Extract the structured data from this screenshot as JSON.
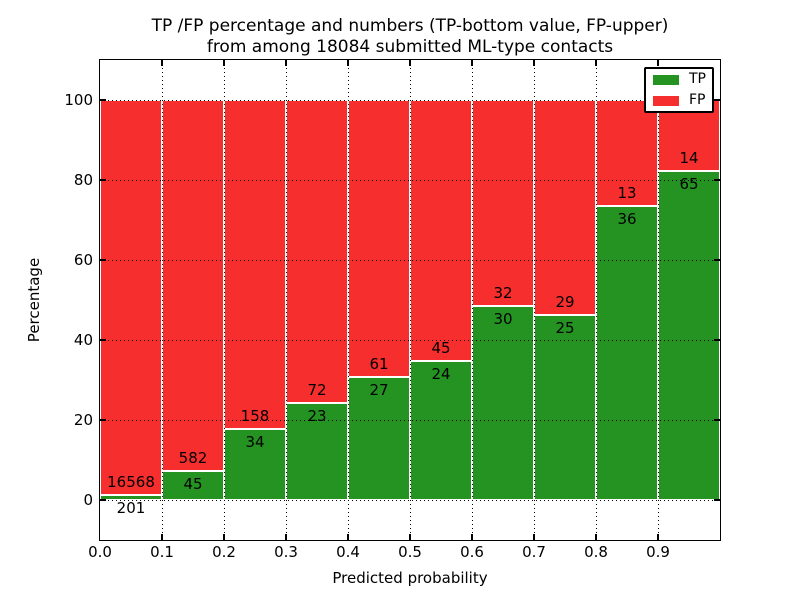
{
  "title": {
    "line1": "TP /FP percentage and numbers (TP-bottom value, FP-upper)",
    "line2": "from among 18084 submitted ML-type contacts"
  },
  "axes": {
    "xlabel": "Predicted probability",
    "ylabel": "Percentage"
  },
  "legend": {
    "items": [
      {
        "label": "TP",
        "color": "#249322"
      },
      {
        "label": "FP",
        "color": "#f62e2e"
      }
    ]
  },
  "colors": {
    "tp": "#249322",
    "fp": "#f62e2e",
    "grid": "#000000",
    "axis": "#000000",
    "background": "#ffffff",
    "bar_edge": "#ffffff",
    "text": "#000000"
  },
  "chart_data": {
    "type": "bar",
    "subtype": "stacked-100-percent",
    "title": "TP /FP percentage and numbers (TP-bottom value, FP-upper) from among 18084 submitted ML-type contacts",
    "xlabel": "Predicted probability",
    "ylabel": "Percentage",
    "total_submitted": 18084,
    "xlim": [
      0.0,
      1.0
    ],
    "ylim": [
      -10,
      110
    ],
    "xticks": [
      "0.0",
      "0.1",
      "0.2",
      "0.3",
      "0.4",
      "0.5",
      "0.6",
      "0.7",
      "0.8",
      "0.9"
    ],
    "yticks": [
      "0",
      "20",
      "40",
      "60",
      "80",
      "100"
    ],
    "ytick_values": [
      0,
      20,
      40,
      60,
      80,
      100
    ],
    "grid": "dotted black, vertical at each 0.1 and horizontal at each 20, drawn over bars",
    "legend_position": "upper-right",
    "bin_width": 0.1,
    "categories": [
      "0.0-0.1",
      "0.1-0.2",
      "0.2-0.3",
      "0.3-0.4",
      "0.4-0.5",
      "0.5-0.6",
      "0.6-0.7",
      "0.7-0.8",
      "0.8-0.9",
      "0.9-1.0"
    ],
    "series": [
      {
        "name": "TP",
        "stack_position": "bottom",
        "counts": [
          201,
          45,
          34,
          23,
          27,
          24,
          30,
          25,
          36,
          65
        ]
      },
      {
        "name": "FP",
        "stack_position": "top",
        "counts": [
          16568,
          582,
          158,
          72,
          61,
          45,
          32,
          29,
          13,
          14
        ]
      }
    ],
    "bins": [
      {
        "x_start": "0.0",
        "tp": 201,
        "fp": 16568
      },
      {
        "x_start": "0.1",
        "tp": 45,
        "fp": 582
      },
      {
        "x_start": "0.2",
        "tp": 34,
        "fp": 158
      },
      {
        "x_start": "0.3",
        "tp": 23,
        "fp": 72
      },
      {
        "x_start": "0.4",
        "tp": 27,
        "fp": 61
      },
      {
        "x_start": "0.5",
        "tp": 24,
        "fp": 45
      },
      {
        "x_start": "0.6",
        "tp": 30,
        "fp": 32
      },
      {
        "x_start": "0.7",
        "tp": 25,
        "fp": 29
      },
      {
        "x_start": "0.8",
        "tp": 36,
        "fp": 13
      },
      {
        "x_start": "0.9",
        "tp": 65,
        "fp": 14
      }
    ],
    "tp_percent_by_bin": [
      1.2,
      7.2,
      17.7,
      24.2,
      30.7,
      34.8,
      48.4,
      46.3,
      73.5,
      82.3
    ]
  }
}
